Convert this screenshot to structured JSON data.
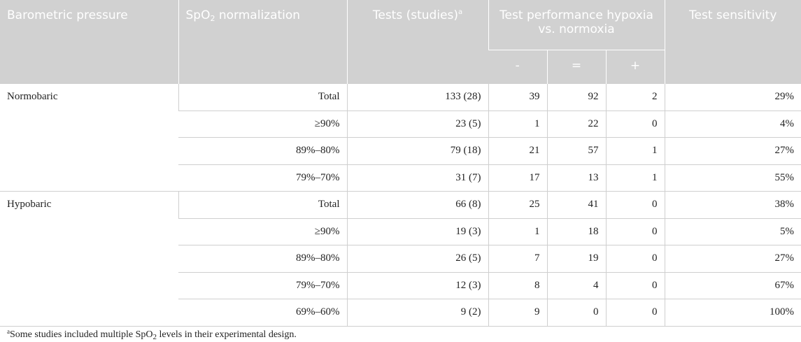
{
  "header": {
    "barometric_pressure": "Barometric pressure",
    "spo2_prefix": "SpO",
    "spo2_sub": "2",
    "spo2_suffix": " normalization",
    "tests": "Tests (studies)",
    "tests_sup": "a",
    "performance": "Test performance hypoxia vs. normoxia",
    "sensitivity": "Test sensitivity",
    "sub_minus": "-",
    "sub_equal": "=",
    "sub_plus": "+"
  },
  "groups": [
    {
      "name": "Normobaric",
      "rows": [
        {
          "level": "Total",
          "tests": "133 (28)",
          "minus": "39",
          "equal": "92",
          "plus": "2",
          "sensitivity": "29%"
        },
        {
          "level": "≥90%",
          "tests": "23 (5)",
          "minus": "1",
          "equal": "22",
          "plus": "0",
          "sensitivity": "4%"
        },
        {
          "level": "89%–80%",
          "tests": "79 (18)",
          "minus": "21",
          "equal": "57",
          "plus": "1",
          "sensitivity": "27%"
        },
        {
          "level": "79%–70%",
          "tests": "31 (7)",
          "minus": "17",
          "equal": "13",
          "plus": "1",
          "sensitivity": "55%"
        }
      ]
    },
    {
      "name": "Hypobaric",
      "rows": [
        {
          "level": "Total",
          "tests": "66 (8)",
          "minus": "25",
          "equal": "41",
          "plus": "0",
          "sensitivity": "38%"
        },
        {
          "level": "≥90%",
          "tests": "19 (3)",
          "minus": "1",
          "equal": "18",
          "plus": "0",
          "sensitivity": "5%"
        },
        {
          "level": "89%–80%",
          "tests": "26 (5)",
          "minus": "7",
          "equal": "19",
          "plus": "0",
          "sensitivity": "27%"
        },
        {
          "level": "79%–70%",
          "tests": "12 (3)",
          "minus": "8",
          "equal": "4",
          "plus": "0",
          "sensitivity": "67%"
        },
        {
          "level": "69%–60%",
          "tests": "9 (2)",
          "minus": "9",
          "equal": "0",
          "plus": "0",
          "sensitivity": "100%"
        }
      ]
    }
  ],
  "footnote": {
    "marker": "a",
    "text_before": "Some studies included multiple SpO",
    "sub": "2",
    "text_after": " levels in their experimental design."
  }
}
